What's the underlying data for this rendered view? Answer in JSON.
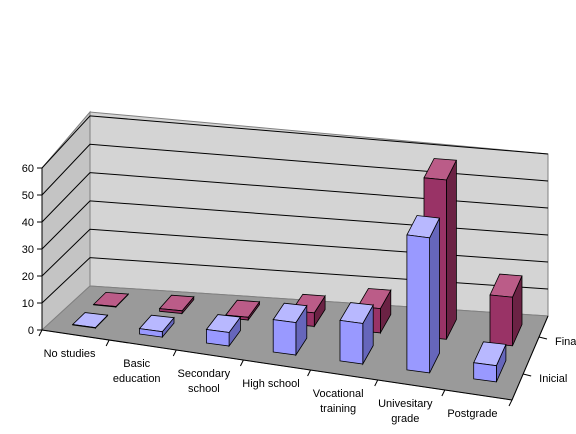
{
  "chart_data": {
    "type": "bar",
    "title": "",
    "xlabel": "",
    "ylabel": "",
    "categories": [
      [
        "No studies"
      ],
      [
        "Basic",
        "education"
      ],
      [
        "Secondary",
        "school"
      ],
      [
        "High school"
      ],
      [
        "Vocational",
        "training"
      ],
      [
        "Univesitary",
        "grade"
      ],
      [
        "Postgrade"
      ]
    ],
    "series": [
      {
        "name": "Inicial",
        "values": [
          0,
          2,
          5,
          12,
          15,
          50,
          6
        ],
        "color_front": "#9999ff",
        "color_top": "#b8b8ff",
        "color_side": "#6666bb"
      },
      {
        "name": "Final",
        "values": [
          0,
          1,
          1,
          5,
          9,
          59,
          18
        ],
        "color_front": "#993366",
        "color_top": "#bb5c88",
        "color_side": "#6b2244"
      }
    ],
    "y_ticks": [
      0,
      10,
      20,
      30,
      40,
      50,
      60
    ],
    "ylim": [
      0,
      60
    ],
    "grid": true,
    "view": "3d-clustered-depth"
  }
}
